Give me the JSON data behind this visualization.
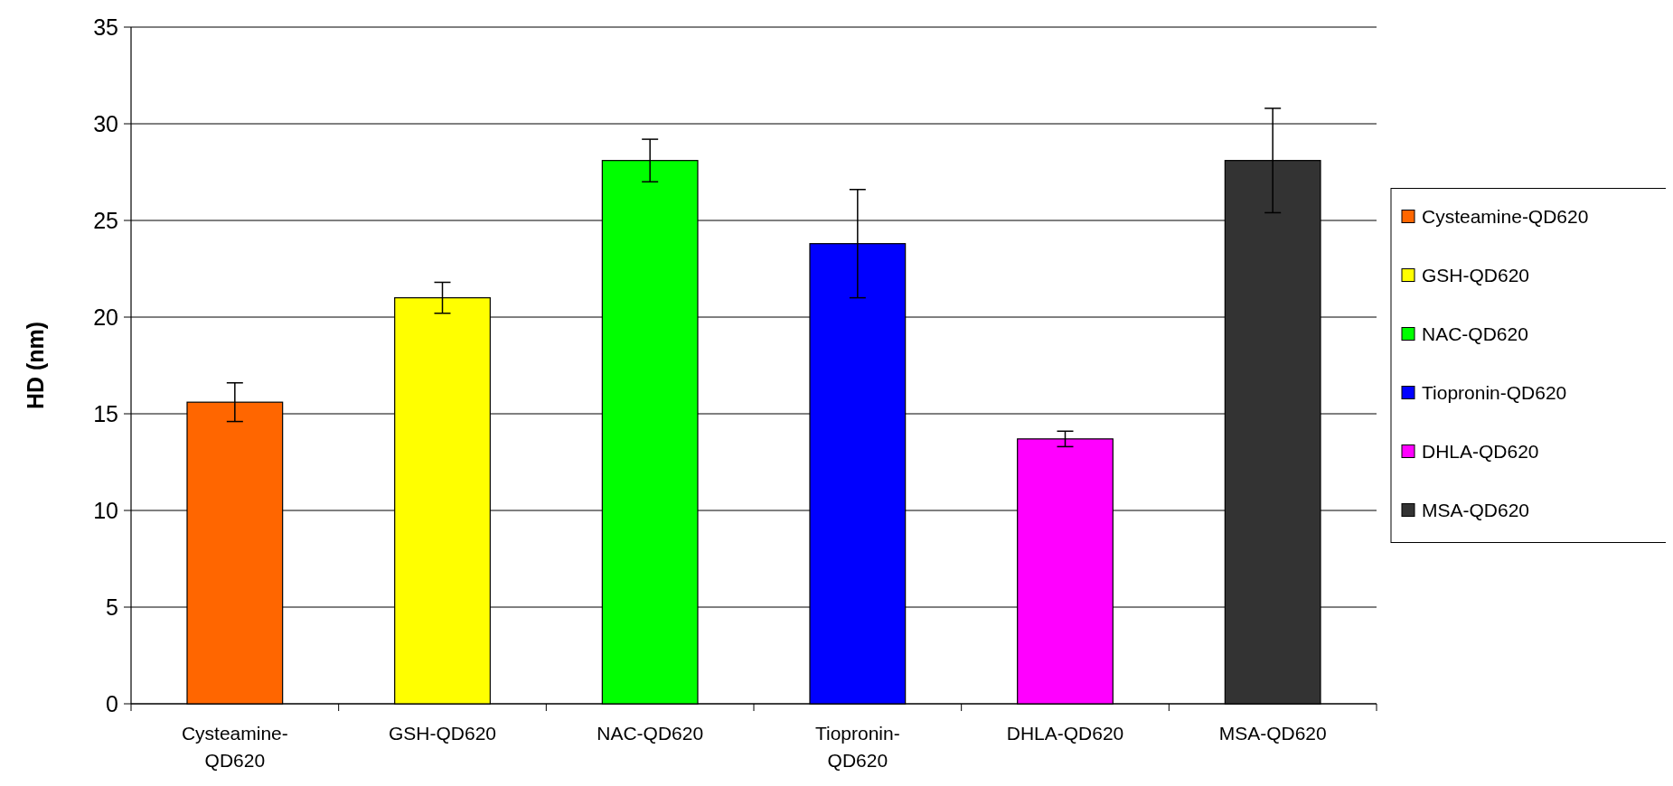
{
  "chart_data": {
    "type": "bar",
    "ylabel": "HD (nm)",
    "categories": [
      "Cysteamine-QD620",
      "GSH-QD620",
      "NAC-QD620",
      "Tiopronin-QD620",
      "DHLA-QD620",
      "MSA-QD620"
    ],
    "series": [
      {
        "name": "Cysteamine-QD620",
        "color": "#ff6600",
        "values": [
          15.6,
          null,
          null,
          null,
          null,
          null
        ],
        "errors": [
          1.0,
          null,
          null,
          null,
          null,
          null
        ]
      },
      {
        "name": "GSH-QD620",
        "color": "#ffff00",
        "values": [
          null,
          21.0,
          null,
          null,
          null,
          null
        ],
        "errors": [
          null,
          0.8,
          null,
          null,
          null,
          null
        ]
      },
      {
        "name": "NAC-QD620",
        "color": "#00ff00",
        "values": [
          null,
          null,
          28.1,
          null,
          null,
          null
        ],
        "errors": [
          null,
          null,
          1.1,
          null,
          null,
          null
        ]
      },
      {
        "name": "Tiopronin-QD620",
        "color": "#0000ff",
        "values": [
          null,
          null,
          null,
          23.8,
          null,
          null
        ],
        "errors": [
          null,
          null,
          null,
          2.8,
          null,
          null
        ]
      },
      {
        "name": "DHLA-QD620",
        "color": "#ff00ff",
        "values": [
          null,
          null,
          null,
          null,
          13.7,
          null
        ],
        "errors": [
          null,
          null,
          null,
          null,
          0.4,
          null
        ]
      },
      {
        "name": "MSA-QD620",
        "color": "#333333",
        "values": [
          null,
          null,
          null,
          null,
          null,
          28.1
        ],
        "errors": [
          null,
          null,
          null,
          null,
          null,
          2.7
        ]
      }
    ],
    "ylim": [
      0,
      35
    ],
    "yticks": [
      0,
      5,
      10,
      15,
      20,
      25,
      30,
      35
    ],
    "grid": "y",
    "legend": "right"
  }
}
